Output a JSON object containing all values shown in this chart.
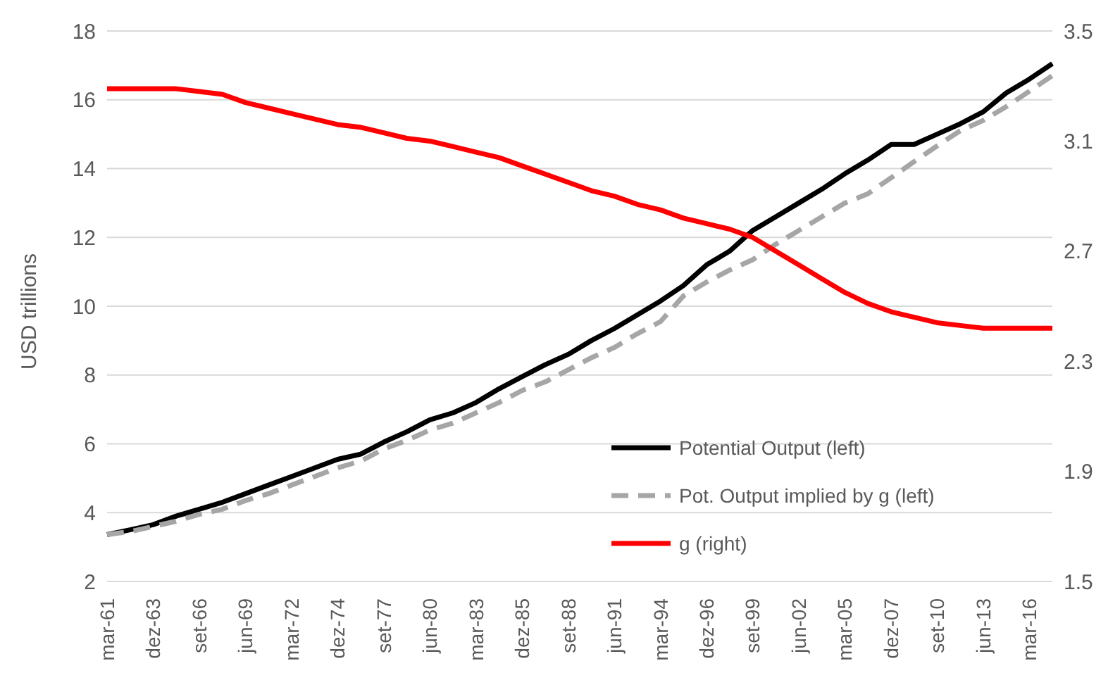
{
  "chart_data": {
    "type": "line",
    "ylabel": "USD trillions",
    "categories": [
      "mar-61",
      null,
      "dez-63",
      null,
      "set-66",
      null,
      "jun-69",
      null,
      "mar-72",
      null,
      "dez-74",
      null,
      "set-77",
      null,
      "jun-80",
      null,
      "mar-83",
      null,
      "dez-85",
      null,
      "set-88",
      null,
      "jun-91",
      null,
      "mar-94",
      null,
      "dez-96",
      null,
      "set-99",
      null,
      "jun-02",
      null,
      "mar-05",
      null,
      "dez-07",
      null,
      "set-10",
      null,
      "jun-13",
      null,
      "mar-16",
      null
    ],
    "series": [
      {
        "name": "Potential Output (left)",
        "color": "#000000",
        "line_style": "solid",
        "values": [
          3.36,
          3.5,
          3.65,
          3.9,
          4.1,
          4.3,
          4.55,
          4.8,
          5.05,
          5.3,
          5.55,
          5.7,
          6.05,
          6.35,
          6.7,
          6.9,
          7.2,
          7.6,
          7.95,
          8.3,
          8.6,
          9.0,
          9.35,
          9.75,
          10.15,
          10.6,
          11.2,
          11.6,
          12.2,
          12.6,
          13.0,
          13.4,
          13.85,
          14.25,
          14.7,
          14.7,
          15.0,
          15.3,
          15.65,
          16.2,
          16.6,
          17.05
        ]
      },
      {
        "name": "Pot. Output implied by g (left)",
        "color": "#a6a6a6",
        "line_style": "dashed",
        "values": [
          3.36,
          3.45,
          3.6,
          3.75,
          3.95,
          4.1,
          4.35,
          4.55,
          4.8,
          5.05,
          5.3,
          5.5,
          5.85,
          6.1,
          6.4,
          6.6,
          6.9,
          7.2,
          7.55,
          7.8,
          8.15,
          8.5,
          8.8,
          9.2,
          9.55,
          10.3,
          10.7,
          11.05,
          11.35,
          11.8,
          12.2,
          12.6,
          13.0,
          13.27,
          13.73,
          14.2,
          14.66,
          15.1,
          15.4,
          15.8,
          16.25,
          16.7
        ]
      },
      {
        "name": "g (right)",
        "color": "#ff0000",
        "line_style": "solid",
        "axis": "y2",
        "values": [
          3.29,
          3.29,
          3.29,
          3.29,
          3.28,
          3.27,
          3.24,
          3.22,
          3.2,
          3.18,
          3.16,
          3.15,
          3.13,
          3.11,
          3.1,
          3.08,
          3.06,
          3.04,
          3.01,
          2.98,
          2.95,
          2.92,
          2.9,
          2.87,
          2.85,
          2.82,
          2.8,
          2.78,
          2.75,
          2.7,
          2.65,
          2.6,
          2.55,
          2.51,
          2.48,
          2.46,
          2.44,
          2.43,
          2.42,
          2.42,
          2.42,
          2.42
        ]
      }
    ],
    "ylim": [
      2,
      18
    ],
    "yticks": [
      2,
      4,
      6,
      8,
      10,
      12,
      14,
      16,
      18
    ],
    "y2lim": [
      1.5,
      3.5
    ],
    "y2ticks": [
      1.5,
      1.9,
      2.3,
      2.7,
      3.1,
      3.5
    ],
    "grid": "y",
    "legend": "bottom right",
    "marker": "none"
  }
}
